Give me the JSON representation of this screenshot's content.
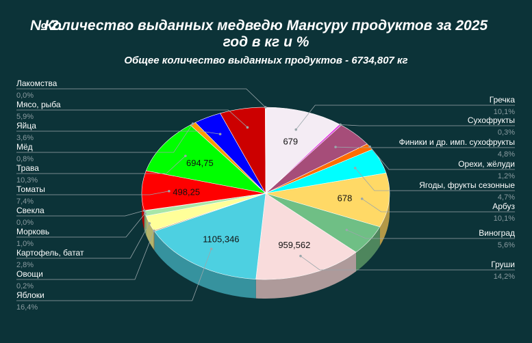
{
  "title": {
    "number": "№ 2.",
    "line1": "Количество выданных медведю Мансуру продуктов за 2025",
    "line2": "год в кг и %"
  },
  "subtitle": "Общее количество выданных продуктов - 6734,807 кг",
  "chart_data": {
    "type": "pie",
    "title": "Количество выданных медведю Мансуру продуктов за 2025 год в кг и %",
    "subtitle": "Общее количество выданных продуктов - 6734,807 кг",
    "slices": [
      {
        "name": "Гречка",
        "pct": "10,1%",
        "value": 10.1,
        "label": "679",
        "color": "#f4ecf4"
      },
      {
        "name": "Сухофрукты",
        "pct": "0,3%",
        "value": 0.3,
        "label": "",
        "color": "#e040e0"
      },
      {
        "name": "Финики и др. имп. сухофрукты",
        "pct": "4,8%",
        "value": 4.8,
        "label": "",
        "color": "#a64d79"
      },
      {
        "name": "Орехи, жёлуди",
        "pct": "1,2%",
        "value": 1.2,
        "label": "",
        "color": "#ff6d01"
      },
      {
        "name": "Ягоды, фрукты сезонные",
        "pct": "4,7%",
        "value": 4.7,
        "label": "",
        "color": "#00ffff"
      },
      {
        "name": "Арбуз",
        "pct": "10,1%",
        "value": 10.1,
        "label": "678",
        "color": "#ffd966"
      },
      {
        "name": "Виноград",
        "pct": "5,6%",
        "value": 5.6,
        "label": "",
        "color": "#6fbf85"
      },
      {
        "name": "Груши",
        "pct": "14,2%",
        "value": 14.2,
        "label": "959,562",
        "color": "#f9dcdc"
      },
      {
        "name": "Яблоки",
        "pct": "16,4%",
        "value": 16.4,
        "label": "1105,346",
        "color": "#4dd0e1"
      },
      {
        "name": "Овощи",
        "pct": "0,2%",
        "value": 0.2,
        "label": "",
        "color": "#c9a76b"
      },
      {
        "name": "Картофель, батат",
        "pct": "2,8%",
        "value": 2.8,
        "label": "",
        "color": "#ffff99"
      },
      {
        "name": "Морковь",
        "pct": "1,0%",
        "value": 1.0,
        "label": "",
        "color": "#a8e6a8"
      },
      {
        "name": "Свекла",
        "pct": "0,0%",
        "value": 0.05,
        "label": "",
        "color": "#b06060"
      },
      {
        "name": "Томаты",
        "pct": "7,4%",
        "value": 7.4,
        "label": "498,25",
        "color": "#ff0000"
      },
      {
        "name": "Трава",
        "pct": "10,3%",
        "value": 10.3,
        "label": "694,75",
        "color": "#00ff00"
      },
      {
        "name": "Мёд",
        "pct": "0,8%",
        "value": 0.8,
        "label": "",
        "color": "#ff9900"
      },
      {
        "name": "Яйца",
        "pct": "3,6%",
        "value": 3.6,
        "label": "",
        "color": "#0000ff"
      },
      {
        "name": "Мясо, рыба",
        "pct": "5,9%",
        "value": 5.9,
        "label": "",
        "color": "#cc0000"
      },
      {
        "name": "Лакомства",
        "pct": "0,0%",
        "value": 0.05,
        "label": "",
        "color": "#f4ecf4"
      }
    ]
  }
}
